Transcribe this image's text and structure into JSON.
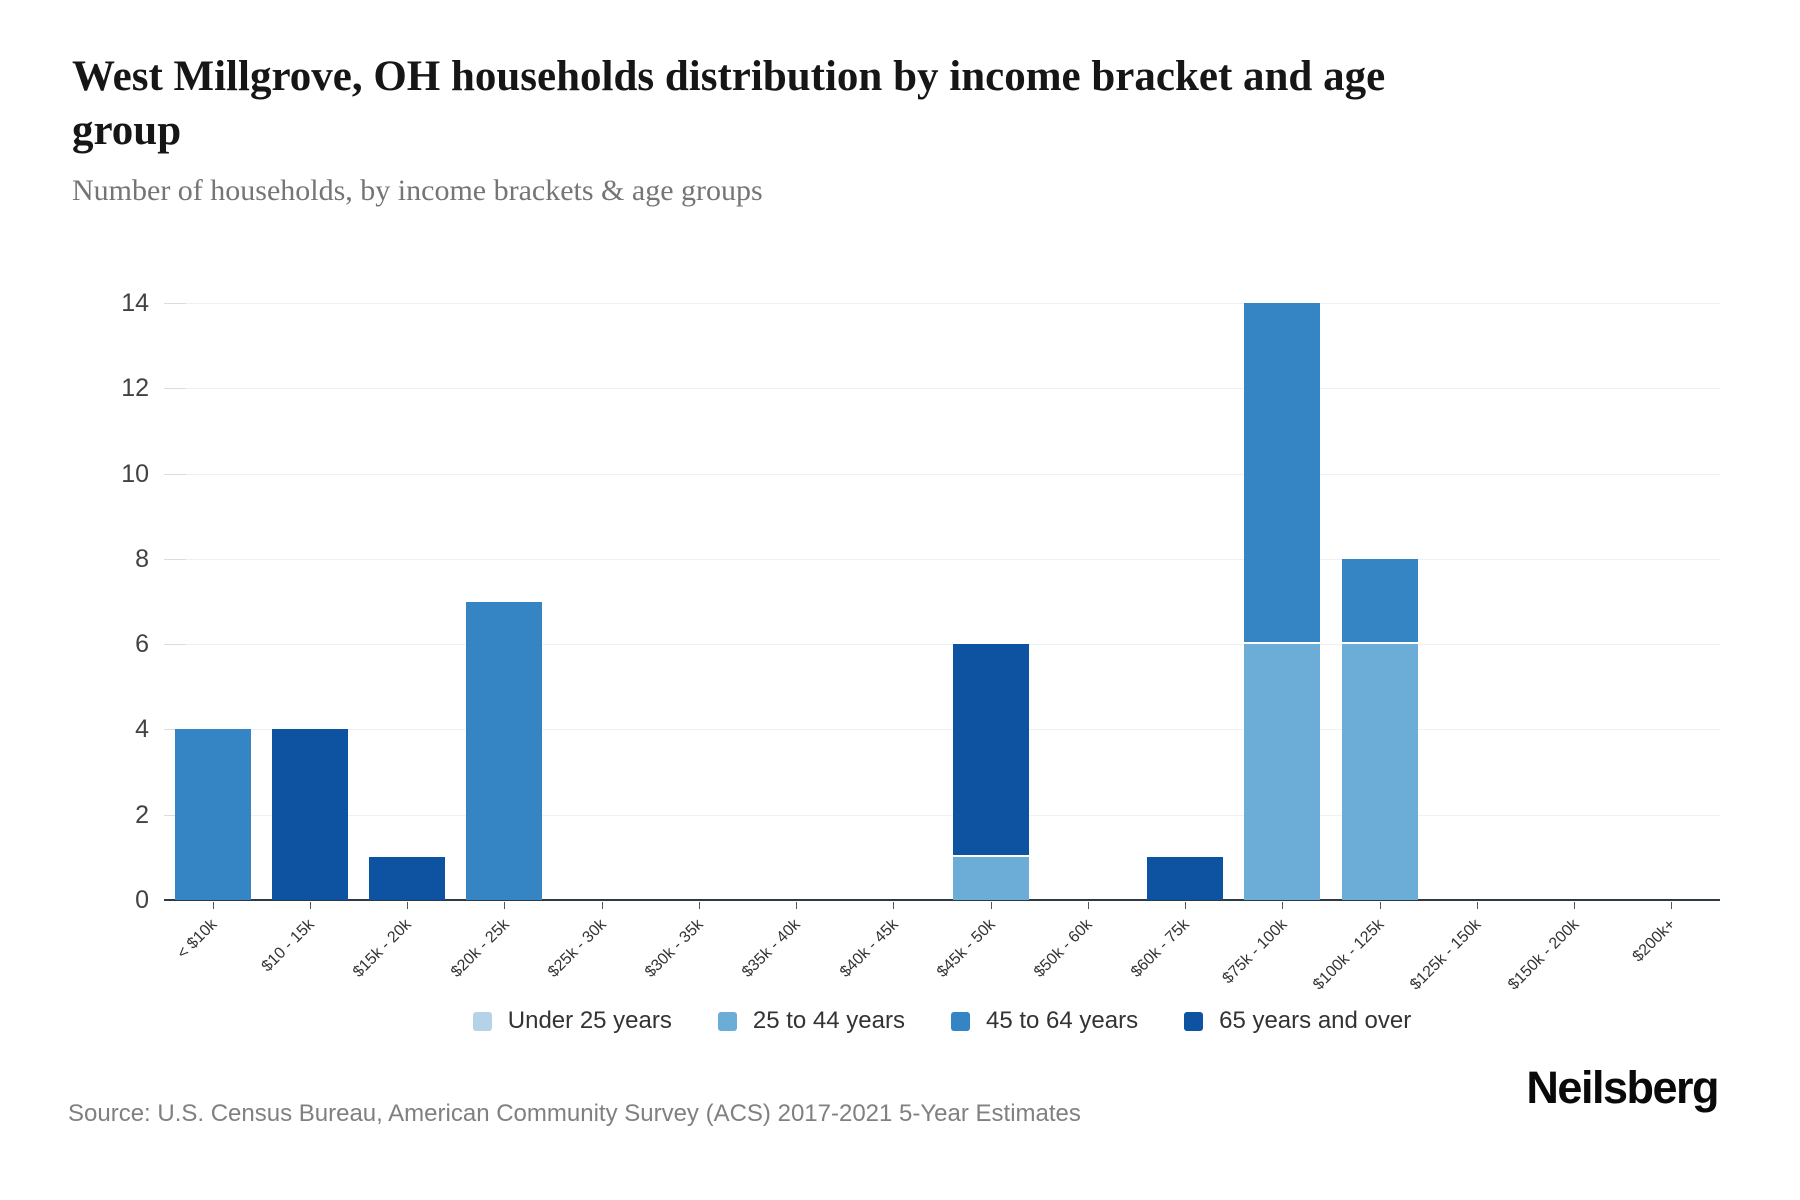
{
  "chart_data": {
    "type": "bar",
    "stacked": true,
    "title": "West Millgrove, OH households distribution by income bracket and age group",
    "subtitle": "Number of households, by income brackets & age groups",
    "categories": [
      "< $10k",
      "$10 - 15k",
      "$15k - 20k",
      "$20k - 25k",
      "$25k - 30k",
      "$30k - 35k",
      "$35k - 40k",
      "$40k - 45k",
      "$45k - 50k",
      "$50k - 60k",
      "$60k - 75k",
      "$75k - 100k",
      "$100k - 125k",
      "$125k - 150k",
      "$150k - 200k",
      "$200k+"
    ],
    "series": [
      {
        "name": "Under 25 years",
        "color": "#b5d3e8",
        "values": [
          0,
          0,
          0,
          0,
          0,
          0,
          0,
          0,
          0,
          0,
          0,
          0,
          0,
          0,
          0,
          0
        ]
      },
      {
        "name": "25 to 44 years",
        "color": "#6badd6",
        "values": [
          0,
          0,
          0,
          0,
          0,
          0,
          0,
          0,
          1,
          0,
          0,
          6,
          6,
          0,
          0,
          0
        ]
      },
      {
        "name": "45 to 64 years",
        "color": "#3584c4",
        "values": [
          4,
          0,
          0,
          7,
          0,
          0,
          0,
          0,
          0,
          0,
          0,
          8,
          2,
          0,
          0,
          0
        ]
      },
      {
        "name": "65 years and over",
        "color": "#0d53a2",
        "values": [
          0,
          4,
          1,
          0,
          0,
          0,
          0,
          0,
          5,
          0,
          1,
          0,
          0,
          0,
          0,
          0
        ]
      }
    ],
    "xlabel": "",
    "ylabel": "",
    "ylim": [
      0,
      14
    ],
    "yticks": [
      0,
      2,
      4,
      6,
      8,
      10,
      12,
      14
    ],
    "grid": true,
    "legend_position": "bottom"
  },
  "footer": {
    "source": "Source: U.S. Census Bureau, American Community Survey (ACS) 2017-2021 5-Year Estimates",
    "brand": "Neilsberg"
  }
}
